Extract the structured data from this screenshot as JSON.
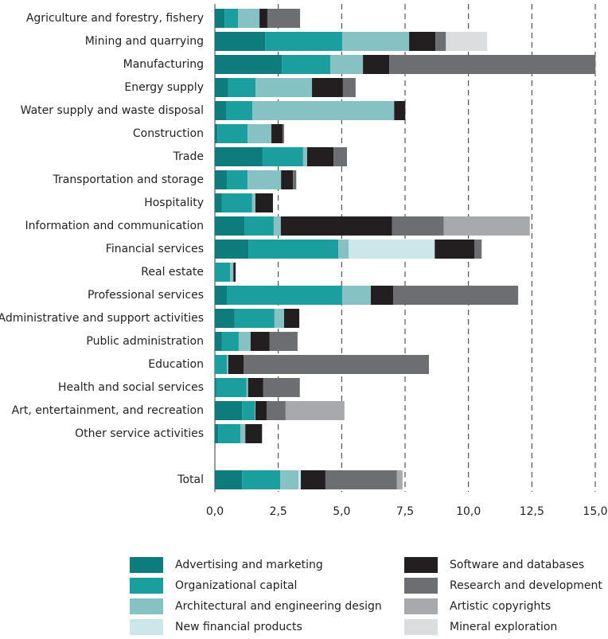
{
  "chart_data": {
    "type": "stacked_bar_horizontal",
    "categories": [
      "Agriculture and forestry, fishery",
      "Mining and quarrying",
      "Manufacturing",
      "Energy supply",
      "Water supply and waste disposal",
      "Construction",
      "Trade",
      "Transportation and storage",
      "Hospitality",
      "Information and communication",
      "Financial services",
      "Real estate",
      "Professional services",
      "Administrative and support activities",
      "Public administration",
      "Education",
      "Health and social services",
      "Art, entertainment, and recreation",
      "Other service activities",
      null,
      "Total"
    ],
    "series": [
      {
        "name": "Advertising and marketing",
        "color": "#0e7b7d",
        "values": [
          0.38,
          1.98,
          2.64,
          0.53,
          0.44,
          0.1,
          1.88,
          0.47,
          0.28,
          1.16,
          1.32,
          0,
          0.47,
          0.78,
          0.28,
          0,
          0.06,
          1.07,
          0.13,
          null,
          1.07
        ]
      },
      {
        "name": "Organizational capital",
        "color": "#1a9e9e",
        "values": [
          0.53,
          3.04,
          1.91,
          1.07,
          1.04,
          1.19,
          1.6,
          0.82,
          1.19,
          1.16,
          3.55,
          0.6,
          4.55,
          1.57,
          0.66,
          0.47,
          1.19,
          0.5,
          0.88,
          null,
          1.51
        ]
      },
      {
        "name": "Architectural and engineering design",
        "color": "#86c2c4",
        "values": [
          0.85,
          2.64,
          1.29,
          2.23,
          5.59,
          0.94,
          0.16,
          1.32,
          0.13,
          0.28,
          0.41,
          0.13,
          1.13,
          0.38,
          0.47,
          0.06,
          0.06,
          0.03,
          0.19,
          null,
          0.72
        ]
      },
      {
        "name": "New financial products",
        "color": "#cde6ea",
        "values": [
          0,
          0,
          0,
          0,
          0,
          0,
          0,
          0,
          0,
          0,
          3.39,
          0,
          0,
          0,
          0,
          0,
          0,
          0,
          0,
          null,
          0.09
        ]
      },
      {
        "name": "Software and databases",
        "color": "#231f20",
        "values": [
          0.31,
          1.04,
          1.04,
          1.22,
          0.44,
          0.44,
          1.04,
          0.47,
          0.69,
          4.39,
          1.57,
          0.09,
          0.88,
          0.6,
          0.75,
          0.6,
          0.6,
          0.44,
          0.66,
          null,
          0.97
        ]
      },
      {
        "name": "Research and development",
        "color": "#6d6e71",
        "values": [
          1.29,
          0.41,
          8.13,
          0.5,
          0,
          0.06,
          0.53,
          0.13,
          0,
          2.04,
          0.28,
          0,
          4.93,
          0,
          1.1,
          7.31,
          1.44,
          0.75,
          0,
          null,
          2.82
        ]
      },
      {
        "name": "Artistic copyrights",
        "color": "#a7a9ac",
        "values": [
          0,
          0,
          0,
          0,
          0,
          0,
          0,
          0,
          0,
          3.39,
          0,
          0,
          0,
          0,
          0,
          0,
          0,
          2.32,
          0,
          null,
          0.22
        ]
      },
      {
        "name": "Mineral exploration",
        "color": "#dcddde",
        "values": [
          0,
          1.63,
          0,
          0,
          0,
          0,
          0,
          0,
          0,
          0,
          0,
          0,
          0,
          0,
          0,
          0,
          0,
          0,
          0,
          null,
          0
        ]
      }
    ],
    "xlim": [
      0,
      15
    ],
    "xticks": [
      {
        "value": 0,
        "label": "0,0"
      },
      {
        "value": 2.5,
        "label": "2,5"
      },
      {
        "value": 5,
        "label": "5,0"
      },
      {
        "value": 7.5,
        "label": "7,5"
      },
      {
        "value": 10,
        "label": "10,0"
      },
      {
        "value": 12.5,
        "label": "12,5"
      },
      {
        "value": 15,
        "label": "15,0"
      }
    ],
    "grid": true,
    "legend": "bottom"
  }
}
